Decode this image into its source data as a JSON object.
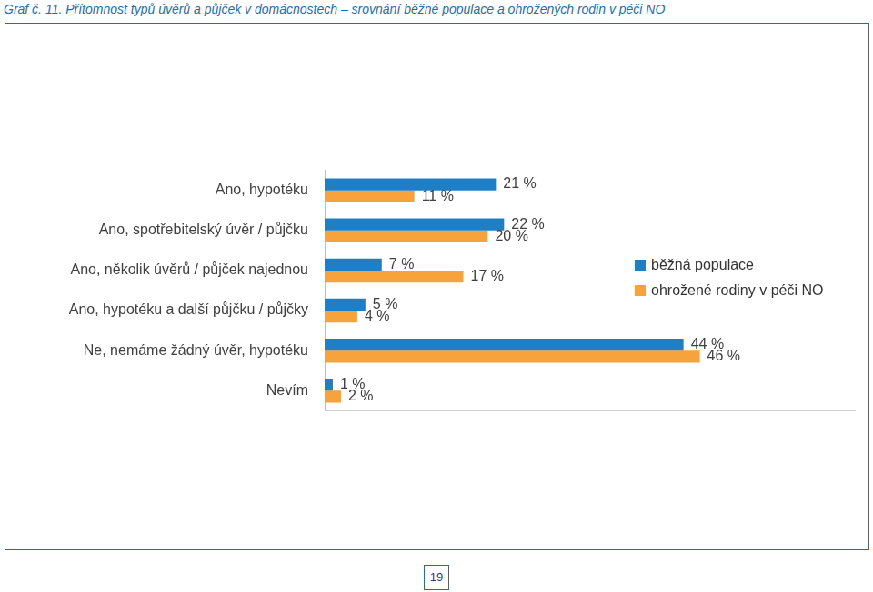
{
  "chart_data": {
    "type": "bar",
    "orientation": "horizontal",
    "title": "Graf č. 11. Přítomnost typů úvěrů a půjček v domácnostech – srovnání běžné populace a ohrožených rodin v péči NO",
    "categories": [
      "Ano, hypotéku",
      "Ano, spotřebitelský úvěr / půjčku",
      "Ano, několik úvěrů / půjček najednou",
      "Ano, hypotéku a další půjčku / půjčky",
      "Ne, nemáme žádný úvěr, hypotéku",
      "Nevím"
    ],
    "series": [
      {
        "name": "běžná populace",
        "color": "#1f7fc6",
        "values": [
          21,
          22,
          7,
          5,
          44,
          1
        ],
        "value_labels": [
          "21 %",
          "22 %",
          "7 %",
          "5 %",
          "44 %",
          "1 %"
        ]
      },
      {
        "name": "ohrožené rodiny v péči NO",
        "color": "#f7a23a",
        "values": [
          11,
          20,
          17,
          4,
          46,
          2
        ],
        "value_labels": [
          "11 %",
          "20 %",
          "17 %",
          "4 %",
          "46 %",
          "2 %"
        ]
      }
    ],
    "xlim": [
      0,
      65
    ],
    "data_labels": true,
    "tick_labels": "y",
    "grid": false,
    "legend": "right"
  },
  "page_number": 19
}
